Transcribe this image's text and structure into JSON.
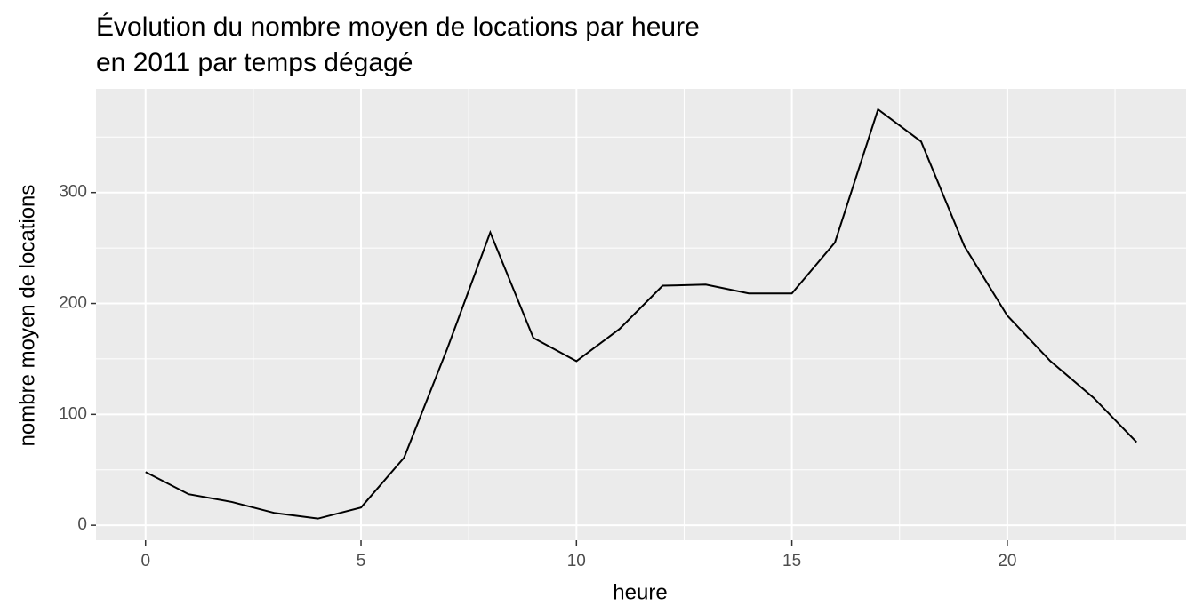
{
  "chart_data": {
    "type": "line",
    "title": [
      "Évolution du nombre moyen de locations par heure",
      "en 2011 par temps dégagé"
    ],
    "x_label": "heure",
    "y_label": "nombre moyen de locations",
    "x": [
      0,
      1,
      2,
      3,
      4,
      5,
      6,
      7,
      8,
      9,
      10,
      11,
      12,
      13,
      14,
      15,
      16,
      17,
      18,
      19,
      20,
      21,
      22,
      23
    ],
    "series": [
      {
        "name": "locations",
        "color": "#000000",
        "values": [
          48,
          28,
          21,
          11,
          6,
          16,
          61,
          159,
          264,
          169,
          148,
          177,
          216,
          217,
          209,
          209,
          255,
          375,
          346,
          252,
          189,
          148,
          115,
          75
        ]
      }
    ],
    "xlim": [
      -1.15,
      24.15
    ],
    "xticks": [
      0,
      5,
      10,
      15,
      20
    ],
    "ylim": [
      -13.5,
      393.5
    ],
    "yticks": [
      0,
      100,
      200,
      300
    ],
    "grid": true,
    "legend": false
  }
}
